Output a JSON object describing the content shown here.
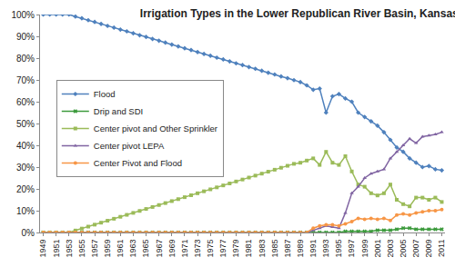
{
  "chart_data": {
    "type": "line",
    "title": "Irrigation Types in the Lower Republican River Basin, Kansas",
    "x": [
      1949,
      1950,
      1951,
      1952,
      1953,
      1954,
      1955,
      1956,
      1957,
      1958,
      1959,
      1960,
      1961,
      1962,
      1963,
      1964,
      1965,
      1966,
      1967,
      1968,
      1969,
      1970,
      1971,
      1972,
      1973,
      1974,
      1975,
      1976,
      1977,
      1978,
      1979,
      1980,
      1981,
      1982,
      1983,
      1984,
      1985,
      1986,
      1987,
      1988,
      1989,
      1990,
      1991,
      1992,
      1993,
      1994,
      1995,
      1996,
      1997,
      1998,
      1999,
      2000,
      2001,
      2002,
      2003,
      2004,
      2005,
      2006,
      2007,
      2008,
      2009,
      2010,
      2011
    ],
    "xlim": [
      1948.5,
      2011.5
    ],
    "xticks": [
      1949,
      1951,
      1953,
      1955,
      1957,
      1959,
      1961,
      1963,
      1965,
      1967,
      1969,
      1971,
      1973,
      1975,
      1977,
      1979,
      1981,
      1983,
      1985,
      1987,
      1989,
      1991,
      1993,
      1995,
      1997,
      1999,
      2001,
      2003,
      2005,
      2007,
      2009,
      2011
    ],
    "ylim": [
      0,
      100
    ],
    "yticks": [
      {
        "value": 0,
        "label": "0%"
      },
      {
        "value": 10,
        "label": "10%"
      },
      {
        "value": 20,
        "label": "20%"
      },
      {
        "value": 30,
        "label": "30%"
      },
      {
        "value": 40,
        "label": "40%"
      },
      {
        "value": 50,
        "label": "50%"
      },
      {
        "value": 60,
        "label": "60%"
      },
      {
        "value": 70,
        "label": "70%"
      },
      {
        "value": 80,
        "label": "80%"
      },
      {
        "value": 90,
        "label": "90%"
      },
      {
        "value": 100,
        "label": "100%"
      }
    ],
    "grid": false,
    "legend": "left",
    "series": [
      {
        "name": "Flood",
        "color": "#4f81bd",
        "marker": "diamond",
        "values": [
          100,
          100,
          100,
          100,
          100,
          99.1,
          98.3,
          97.4,
          96.6,
          95.7,
          94.8,
          94,
          93.1,
          92.3,
          91.4,
          90.5,
          89.7,
          88.8,
          88,
          87.1,
          86.2,
          85.4,
          84.5,
          83.7,
          82.8,
          81.9,
          81.1,
          80.2,
          79.4,
          78.5,
          77.6,
          76.8,
          75.9,
          75.1,
          74.2,
          73.3,
          72.5,
          71.6,
          70.8,
          69.9,
          69,
          67.5,
          65.5,
          66,
          55,
          62.5,
          63.5,
          61.5,
          60,
          55,
          53,
          51,
          49,
          46,
          42.5,
          39,
          37,
          34,
          32,
          30,
          30.5,
          29,
          28.5
        ]
      },
      {
        "name": "Drip and SDI",
        "color": "#3c9a3c",
        "marker": "x",
        "values": [
          0,
          0,
          0,
          0,
          0,
          0,
          0,
          0,
          0,
          0,
          0,
          0,
          0,
          0,
          0,
          0,
          0,
          0,
          0,
          0,
          0,
          0,
          0,
          0,
          0,
          0,
          0,
          0,
          0,
          0,
          0,
          0,
          0,
          0,
          0,
          0,
          0,
          0,
          0,
          0,
          0,
          0,
          0,
          0,
          0,
          0,
          0,
          0.5,
          0.5,
          0.5,
          0.5,
          0.5,
          1,
          1,
          1,
          1.5,
          2,
          2,
          1.5,
          1.5,
          1.5,
          1.5,
          1.5
        ]
      },
      {
        "name": "Center pivot and Other Sprinkler",
        "color": "#9bbb59",
        "marker": "square",
        "values": [
          0,
          0,
          0,
          0,
          0,
          0.9,
          1.8,
          2.7,
          3.6,
          4.5,
          5.4,
          6.3,
          7.2,
          8.1,
          9,
          9.9,
          10.8,
          11.7,
          12.6,
          13.5,
          14.4,
          15.3,
          16.2,
          17.1,
          18,
          18.9,
          19.8,
          20.7,
          21.6,
          22.5,
          23.4,
          24.3,
          25.2,
          26.1,
          27,
          27.9,
          28.8,
          29.7,
          30.6,
          31.5,
          32,
          33,
          34,
          31,
          37,
          32,
          31,
          35,
          28,
          22,
          21,
          18,
          17,
          18,
          22,
          15,
          13,
          12,
          16,
          16,
          15,
          16,
          14
        ]
      },
      {
        "name": "Center pivot LEPA",
        "color": "#8064a2",
        "marker": "triangle-up",
        "values": [
          0,
          0,
          0,
          0,
          0,
          0,
          0,
          0,
          0,
          0,
          0,
          0,
          0,
          0,
          0,
          0,
          0,
          0,
          0,
          0,
          0,
          0,
          0,
          0,
          0,
          0,
          0,
          0,
          0,
          0,
          0,
          0,
          0,
          0,
          0,
          0,
          0,
          0,
          0,
          0,
          0,
          0,
          1,
          2,
          3,
          2.5,
          2,
          9,
          18,
          21,
          25,
          27,
          28,
          29,
          34,
          37,
          40,
          43,
          41,
          44,
          44.5,
          45,
          46
        ]
      },
      {
        "name": "Center Pivot and Flood",
        "color": "#f79646",
        "marker": "circle",
        "values": [
          0,
          0,
          0,
          0,
          0,
          0,
          0,
          0,
          0,
          0,
          0,
          0,
          0,
          0,
          0,
          0,
          0,
          0,
          0,
          0,
          0,
          0,
          0,
          0,
          0,
          0,
          0,
          0,
          0,
          0,
          0,
          0,
          0,
          0,
          0,
          0,
          0,
          0,
          0,
          0,
          0,
          0,
          2,
          3,
          3.5,
          3.5,
          3,
          4,
          5,
          6.5,
          6,
          6.5,
          6,
          6.5,
          5.5,
          8,
          8.5,
          8,
          9,
          9.5,
          10,
          10,
          10.5
        ]
      }
    ]
  }
}
